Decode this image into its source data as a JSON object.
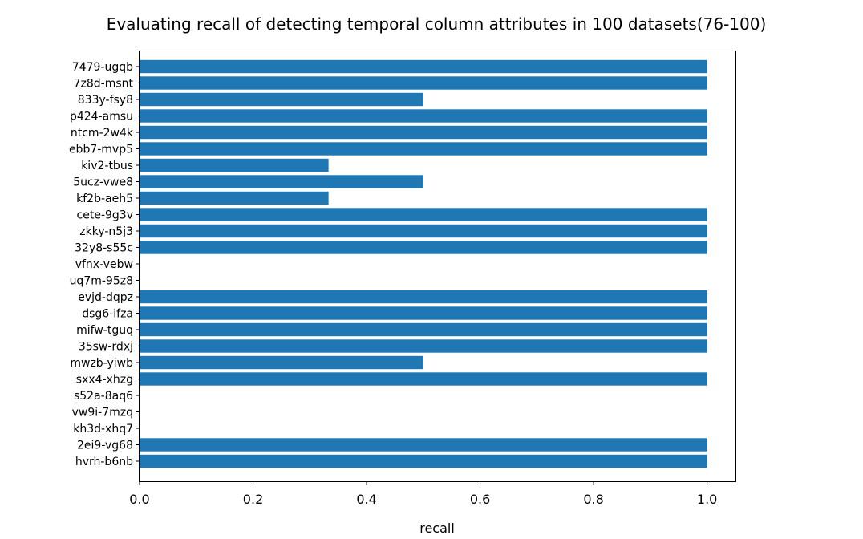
{
  "chart_data": {
    "type": "bar",
    "orientation": "horizontal",
    "title": "Evaluating recall of detecting temporal column attributes in 100 datasets(76-100)",
    "xlabel": "recall",
    "ylabel": "",
    "xlim": [
      0.0,
      1.05
    ],
    "x_ticks": [
      "0.0",
      "0.2",
      "0.4",
      "0.6",
      "0.8",
      "1.0"
    ],
    "bar_color": "#1f77b4",
    "grid": false,
    "categories": [
      "7479-ugqb",
      "7z8d-msnt",
      "833y-fsy8",
      "p424-amsu",
      "ntcm-2w4k",
      "ebb7-mvp5",
      "kiv2-tbus",
      "5ucz-vwe8",
      "kf2b-aeh5",
      "cete-9g3v",
      "zkky-n5j3",
      "32y8-s55c",
      "vfnx-vebw",
      "uq7m-95z8",
      "evjd-dqpz",
      "dsg6-ifza",
      "mifw-tguq",
      "35sw-rdxj",
      "mwzb-yiwb",
      "sxx4-xhzg",
      "s52a-8aq6",
      "vw9i-7mzq",
      "kh3d-xhq7",
      "2ei9-vg68",
      "hvrh-b6nb"
    ],
    "values": [
      1.0,
      1.0,
      0.5,
      1.0,
      1.0,
      1.0,
      0.333,
      0.5,
      0.333,
      1.0,
      1.0,
      1.0,
      0.0,
      0.0,
      1.0,
      1.0,
      1.0,
      1.0,
      0.5,
      1.0,
      0.0,
      0.0,
      0.0,
      1.0,
      1.0
    ]
  }
}
